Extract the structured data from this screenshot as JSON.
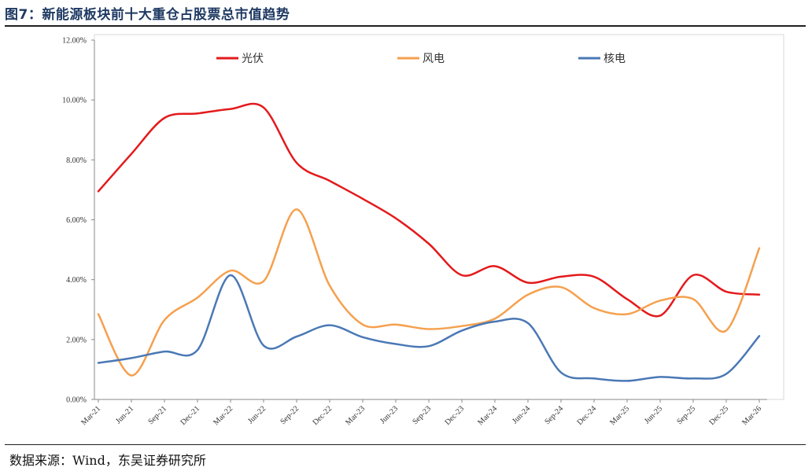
{
  "header": {
    "title": "图7：新能源板块前十大重仓占股票总市值趋势"
  },
  "footer": {
    "source": "数据来源：Wind，东吴证券研究所"
  },
  "chart_data": {
    "type": "line",
    "title": "新能源板块前十大重仓占股票总市值趋势",
    "xlabel": "",
    "ylabel": "",
    "ylim": [
      0,
      12
    ],
    "ytick_labels": [
      "0.00%",
      "2.00%",
      "4.00%",
      "6.00%",
      "8.00%",
      "10.00%",
      "12.00%"
    ],
    "ytick_values": [
      0,
      2,
      4,
      6,
      8,
      10,
      12
    ],
    "x": [
      "Mar-21",
      "Jun-21",
      "Sep-21",
      "Dec-21",
      "Mar-22",
      "Jun-22",
      "Sep-22",
      "Dec-22",
      "Mar-23",
      "Jun-23",
      "Sep-23",
      "Dec-23",
      "Mar-24",
      "Jun-24",
      "Sep-24",
      "Dec-24",
      "Mar-25",
      "Jun-25",
      "Sep-25",
      "Dec-25",
      "Mar-26"
    ],
    "legend_position": "top",
    "series": [
      {
        "name": "光伏",
        "color": "#e31a1c",
        "values": [
          6.95,
          8.2,
          9.4,
          9.55,
          9.7,
          9.75,
          7.9,
          7.3,
          6.7,
          6.05,
          5.2,
          4.15,
          4.45,
          3.9,
          4.1,
          4.1,
          3.35,
          2.8,
          4.15,
          3.6,
          3.5
        ]
      },
      {
        "name": "风电",
        "color": "#f5a04e",
        "values": [
          2.85,
          0.8,
          2.65,
          3.4,
          4.3,
          3.95,
          6.35,
          3.8,
          2.5,
          2.5,
          2.35,
          2.45,
          2.7,
          3.5,
          3.75,
          3.05,
          2.85,
          3.3,
          3.35,
          2.3,
          5.05
        ]
      },
      {
        "name": "核电",
        "color": "#4a78b5",
        "values": [
          1.22,
          1.38,
          1.6,
          1.65,
          4.15,
          1.8,
          2.1,
          2.48,
          2.08,
          1.85,
          1.78,
          2.3,
          2.6,
          2.55,
          0.9,
          0.7,
          0.62,
          0.75,
          0.7,
          0.85,
          2.12
        ]
      }
    ]
  }
}
